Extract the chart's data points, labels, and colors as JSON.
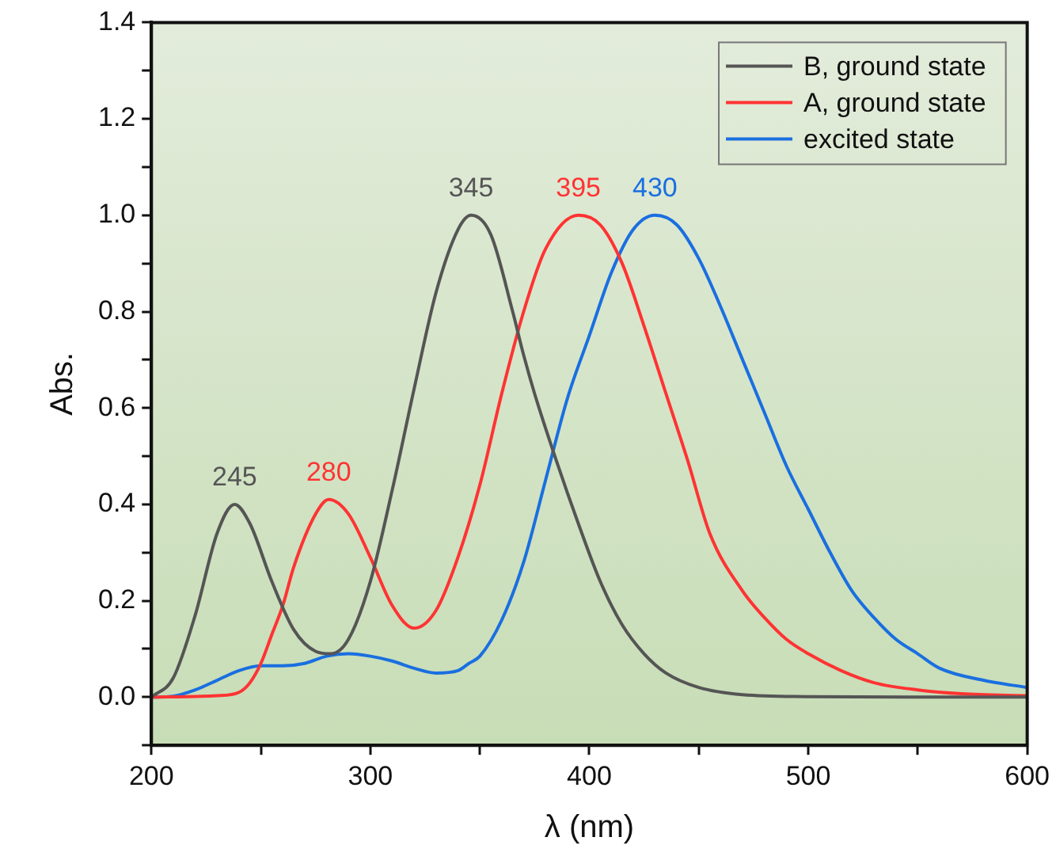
{
  "chart_data": {
    "type": "line",
    "xlabel": "λ (nm)",
    "ylabel": "Abs.",
    "xlim": [
      200,
      600
    ],
    "ylim": [
      -0.1,
      1.4
    ],
    "xticks": [
      200,
      {
        "value": 250,
        "label": null
      },
      300,
      {
        "value": 350,
        "label": null
      },
      400,
      {
        "value": 450,
        "label": null
      },
      500,
      {
        "value": 550,
        "label": null
      },
      600
    ],
    "yticks": [
      {
        "value": -0.1,
        "label": null
      },
      {
        "value": 0,
        "label": "0.0"
      },
      {
        "value": 0.1,
        "label": null
      },
      0.2,
      {
        "value": 0.3,
        "label": null
      },
      0.4,
      {
        "value": 0.5,
        "label": null
      },
      0.6,
      {
        "value": 0.7,
        "label": null
      },
      0.8,
      {
        "value": 0.9,
        "label": null
      },
      {
        "value": 1,
        "label": "1.0"
      },
      {
        "value": 1.1,
        "label": null
      },
      1.2,
      {
        "value": 1.3,
        "label": null
      },
      1.4
    ],
    "grid": false,
    "legend": "top right",
    "marker": "none",
    "line_style": "solid",
    "series": [
      {
        "name": "B, ground state",
        "color": "#555555",
        "x": [
          200,
          210,
          220,
          230,
          238,
          245,
          255,
          265,
          275,
          282,
          290,
          300,
          310,
          320,
          330,
          340,
          346,
          355,
          365,
          370,
          375,
          385,
          395,
          405,
          415,
          425,
          435,
          450,
          470,
          500,
          550,
          600
        ],
        "values": [
          0,
          0.04,
          0.17,
          0.34,
          0.4,
          0.36,
          0.24,
          0.14,
          0.095,
          0.09,
          0.12,
          0.24,
          0.43,
          0.64,
          0.84,
          0.97,
          1,
          0.96,
          0.8,
          0.71,
          0.63,
          0.49,
          0.36,
          0.24,
          0.15,
          0.09,
          0.05,
          0.02,
          0.005,
          0.001,
          0,
          0
        ]
      },
      {
        "name": "A, ground state",
        "color": "#ff3333",
        "x": [
          200,
          230,
          240,
          245,
          250,
          255,
          260,
          265,
          275,
          281,
          290,
          300,
          310,
          320,
          330,
          340,
          350,
          360,
          370,
          380,
          395,
          405,
          415,
          425,
          435,
          445,
          455,
          470,
          480,
          490,
          500,
          515,
          530,
          550,
          570,
          600
        ],
        "values": [
          0,
          0.003,
          0.01,
          0.03,
          0.07,
          0.13,
          0.19,
          0.27,
          0.38,
          0.41,
          0.38,
          0.29,
          0.19,
          0.143,
          0.18,
          0.29,
          0.44,
          0.63,
          0.8,
          0.93,
          1,
          0.98,
          0.9,
          0.77,
          0.63,
          0.49,
          0.34,
          0.22,
          0.165,
          0.12,
          0.09,
          0.055,
          0.03,
          0.015,
          0.007,
          0.003
        ]
      },
      {
        "name": "excited state",
        "color": "#1a6fe0",
        "x": [
          200,
          210,
          220,
          230,
          240,
          250,
          260,
          270,
          280,
          290,
          300,
          310,
          320,
          330,
          340,
          345,
          350,
          360,
          370,
          380,
          390,
          400,
          410,
          420,
          430,
          440,
          450,
          460,
          470,
          480,
          490,
          500,
          510,
          520,
          530,
          540,
          550,
          560,
          580,
          600
        ],
        "values": [
          0,
          0.002,
          0.015,
          0.035,
          0.055,
          0.065,
          0.065,
          0.07,
          0.085,
          0.09,
          0.085,
          0.075,
          0.06,
          0.05,
          0.055,
          0.07,
          0.085,
          0.16,
          0.28,
          0.45,
          0.62,
          0.75,
          0.88,
          0.97,
          1,
          0.98,
          0.91,
          0.81,
          0.7,
          0.59,
          0.48,
          0.39,
          0.3,
          0.22,
          0.165,
          0.12,
          0.09,
          0.06,
          0.035,
          0.02
        ]
      }
    ],
    "annotations": [
      {
        "text": "245",
        "x": 238,
        "y": 0.4
      },
      {
        "text": "280",
        "x": 281,
        "y": 0.41
      },
      {
        "text": "345",
        "x": 346,
        "y": 1
      },
      {
        "text": "395",
        "x": 395,
        "y": 1
      },
      {
        "text": "430",
        "x": 430,
        "y": 1
      }
    ]
  }
}
